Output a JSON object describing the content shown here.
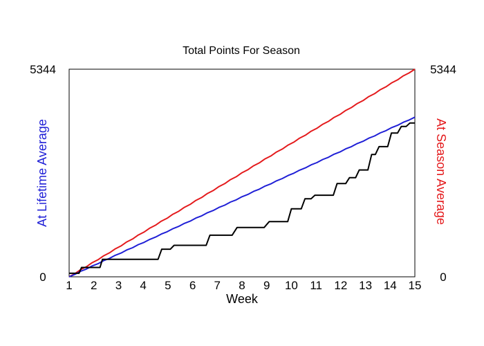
{
  "chart_data": {
    "type": "line",
    "title": "Total Points For Season",
    "xlabel": "Week",
    "ylabel_left": "At Lifetime Average",
    "ylabel_right": "At Season Average",
    "x_ticks": [
      "1",
      "2",
      "3",
      "4",
      "5",
      "6",
      "7",
      "8",
      "9",
      "10",
      "11",
      "12",
      "13",
      "14",
      "15"
    ],
    "xlim": [
      1,
      15
    ],
    "ylim": [
      0,
      5344
    ],
    "y_tick_labels": {
      "min": "0",
      "max": "5344"
    },
    "grid": false,
    "series": [
      {
        "key": "season",
        "color": "#e41a1c",
        "style": "straight",
        "x": [
          1,
          15
        ],
        "y": [
          0,
          5344
        ]
      },
      {
        "key": "lifetime",
        "color": "#1f1fd6",
        "style": "straight",
        "x": [
          1,
          15
        ],
        "y": [
          0,
          4110
        ]
      },
      {
        "key": "actual",
        "color": "#000000",
        "style": "step",
        "x": [
          1,
          1.4,
          1.5,
          1.75,
          2.25,
          2.35,
          2.5,
          4.6,
          4.75,
          5.1,
          5.25,
          6.55,
          6.7,
          7.6,
          7.8,
          8.9,
          9.1,
          9.85,
          10.0,
          10.4,
          10.55,
          10.8,
          10.95,
          11.7,
          11.85,
          12.2,
          12.35,
          12.6,
          12.75,
          13.1,
          13.25,
          13.4,
          13.55,
          13.9,
          14.05,
          14.3,
          14.45,
          14.65,
          14.8,
          15
        ],
        "y": [
          90,
          90,
          240,
          240,
          240,
          450,
          450,
          450,
          710,
          710,
          810,
          810,
          1070,
          1070,
          1270,
          1270,
          1420,
          1420,
          1750,
          1750,
          2010,
          2010,
          2100,
          2100,
          2400,
          2400,
          2550,
          2550,
          2750,
          2750,
          3150,
          3150,
          3350,
          3350,
          3700,
          3700,
          3870,
          3870,
          3960,
          3960
        ]
      }
    ]
  }
}
